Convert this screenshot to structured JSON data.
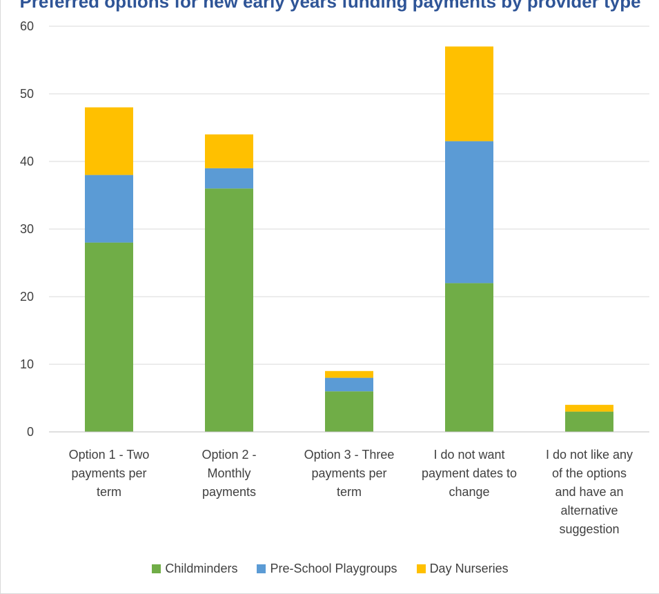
{
  "chart_data": {
    "type": "bar",
    "stacked": true,
    "title": "Preferred options for new early years funding payments by provider type",
    "xlabel": "",
    "ylabel": "",
    "ylim": [
      0,
      60
    ],
    "yticks": [
      0,
      10,
      20,
      30,
      40,
      50,
      60
    ],
    "grid": true,
    "legend_position": "bottom",
    "categories": [
      "Option 1 - Two payments per term",
      "Option 2 - Monthly payments",
      "Option 3 - Three payments per term",
      "I do not want payment dates to change",
      "I do not like any of the options and have an alternative suggestion"
    ],
    "category_lines": [
      [
        "Option 1 - Two",
        "payments per",
        "term"
      ],
      [
        "Option 2 -",
        "Monthly",
        "payments"
      ],
      [
        "Option 3 - Three",
        "payments per",
        "term"
      ],
      [
        "I do not want",
        "payment dates to",
        "change"
      ],
      [
        "I do not like any",
        "of the options",
        "and have an",
        "alternative",
        "suggestion"
      ]
    ],
    "series": [
      {
        "name": "Childminders",
        "color": "#70ad47",
        "values": [
          28,
          36,
          6,
          22,
          3
        ]
      },
      {
        "name": "Pre-School Playgroups",
        "color": "#5b9bd5",
        "values": [
          10,
          3,
          2,
          21,
          0
        ]
      },
      {
        "name": "Day Nurseries",
        "color": "#ffc000",
        "values": [
          10,
          5,
          1,
          14,
          1
        ]
      }
    ]
  }
}
